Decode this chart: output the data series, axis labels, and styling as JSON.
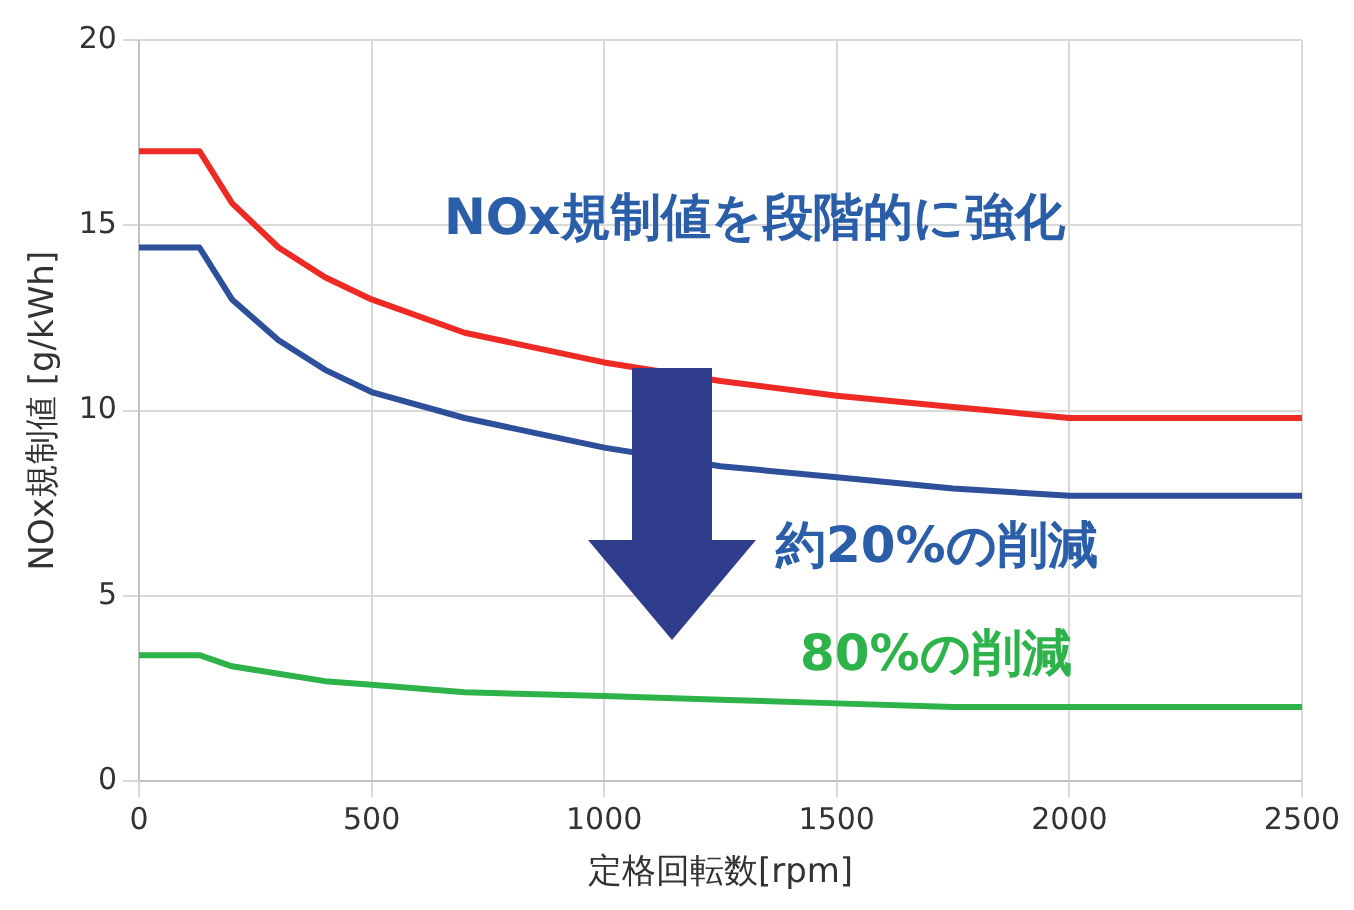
{
  "chart_data": {
    "type": "line",
    "xlabel": "定格回転数[rpm]",
    "ylabel": "NOx規制値 [g/kWh]",
    "x": [
      0,
      130,
      200,
      300,
      400,
      500,
      700,
      1000,
      1250,
      1500,
      1750,
      2000,
      2500
    ],
    "series": [
      {
        "color": "#ee2a24",
        "values": [
          17,
          17,
          15.6,
          14.4,
          13.6,
          13.0,
          12.1,
          11.3,
          10.8,
          10.4,
          10.1,
          9.8,
          9.8
        ]
      },
      {
        "color": "#2e4f9a",
        "values": [
          14.4,
          14.4,
          13.0,
          11.9,
          11.1,
          10.5,
          9.8,
          9.0,
          8.5,
          8.2,
          7.9,
          7.7,
          7.7
        ]
      },
      {
        "color": "#2db34a",
        "values": [
          3.4,
          3.4,
          3.1,
          2.9,
          2.7,
          2.6,
          2.4,
          2.3,
          2.2,
          2.1,
          2.0,
          2.0,
          2.0
        ]
      }
    ],
    "xlim": [
      0,
      2500
    ],
    "xticks": [
      0,
      500,
      1000,
      1500,
      2000,
      2500
    ],
    "ylim": [
      0,
      20
    ],
    "yticks": [
      0,
      5,
      10,
      15,
      20
    ],
    "grid": true,
    "legend": false,
    "marker": "none",
    "line_style": "solid",
    "annotations": [
      "NOx規制値を段階的に強化",
      "約20%の削減",
      "80%の削減"
    ]
  }
}
